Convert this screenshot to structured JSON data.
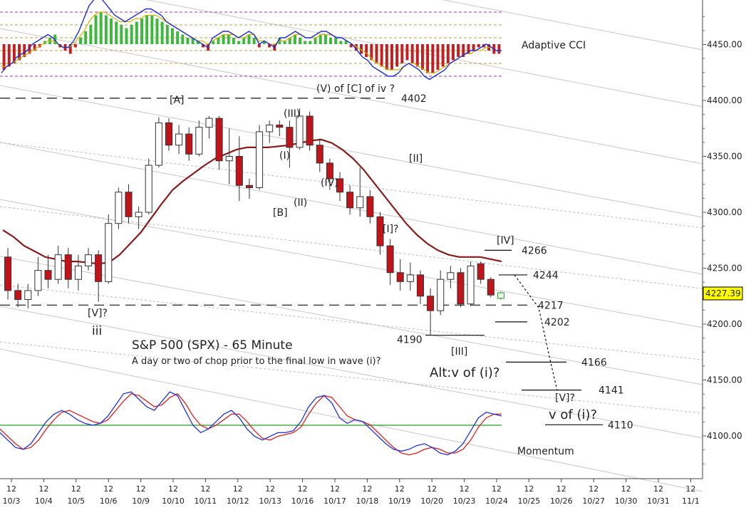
{
  "chart_data": {
    "type": "candlestick",
    "title": "S&P 500 (SPX) - 65 Minute",
    "subtitle": "A day or two of chop prior to the final low in wave (i)?",
    "current_price": "4227.39",
    "y_axis": {
      "min": 4070,
      "max": 4500,
      "ticks": [
        4100,
        4150,
        4200,
        4250,
        4300,
        4350,
        4400,
        4450
      ],
      "tick_labels": [
        "4100.00",
        "4150.00",
        "4200.00",
        "4250.00",
        "4300.00",
        "4350.00",
        "4400.00",
        "4450.00"
      ]
    },
    "x_axis": {
      "slots": 42,
      "ticks": [
        {
          "slot": 0,
          "top": "12",
          "bottom": "10/3"
        },
        {
          "slot": 2,
          "top": "12",
          "bottom": "10/4"
        },
        {
          "slot": 4,
          "top": "12",
          "bottom": "10/5"
        },
        {
          "slot": 6,
          "top": "12",
          "bottom": "10/6"
        },
        {
          "slot": 8,
          "top": "12",
          "bottom": "10/9"
        },
        {
          "slot": 10,
          "top": "12",
          "bottom": "10/10"
        },
        {
          "slot": 12,
          "top": "12",
          "bottom": "10/11"
        },
        {
          "slot": 14,
          "top": "12",
          "bottom": "10/12"
        },
        {
          "slot": 16,
          "top": "12",
          "bottom": "10/13"
        },
        {
          "slot": 18,
          "top": "12",
          "bottom": "10/16"
        },
        {
          "slot": 20,
          "top": "12",
          "bottom": "10/17"
        },
        {
          "slot": 22,
          "top": "12",
          "bottom": "10/18"
        },
        {
          "slot": 24,
          "top": "12",
          "bottom": "10/19"
        },
        {
          "slot": 26,
          "top": "12",
          "bottom": "10/20"
        },
        {
          "slot": 28,
          "top": "12",
          "bottom": "10/23"
        },
        {
          "slot": 30,
          "top": "12",
          "bottom": "10/24"
        },
        {
          "slot": 32,
          "top": "12",
          "bottom": "10/25"
        },
        {
          "slot": 34,
          "top": "12",
          "bottom": "10/26"
        },
        {
          "slot": 36,
          "top": "12",
          "bottom": "10/27"
        },
        {
          "slot": 38,
          "top": "12",
          "bottom": "10/30"
        },
        {
          "slot": 40,
          "top": "12",
          "bottom": "10/31"
        },
        {
          "slot": 42,
          "top": "12",
          "bottom": "11/1"
        }
      ]
    },
    "candles": [
      {
        "o": 4260,
        "h": 4268,
        "l": 4222,
        "c": 4230
      },
      {
        "o": 4230,
        "h": 4236,
        "l": 4215,
        "c": 4222
      },
      {
        "o": 4222,
        "h": 4236,
        "l": 4214,
        "c": 4230
      },
      {
        "o": 4230,
        "h": 4260,
        "l": 4225,
        "c": 4248
      },
      {
        "o": 4248,
        "h": 4262,
        "l": 4232,
        "c": 4240
      },
      {
        "o": 4240,
        "h": 4270,
        "l": 4236,
        "c": 4262
      },
      {
        "o": 4262,
        "h": 4268,
        "l": 4232,
        "c": 4240
      },
      {
        "o": 4240,
        "h": 4262,
        "l": 4230,
        "c": 4252
      },
      {
        "o": 4252,
        "h": 4268,
        "l": 4248,
        "c": 4262
      },
      {
        "o": 4262,
        "h": 4266,
        "l": 4220,
        "c": 4238
      },
      {
        "o": 4238,
        "h": 4298,
        "l": 4236,
        "c": 4290
      },
      {
        "o": 4290,
        "h": 4322,
        "l": 4285,
        "c": 4318
      },
      {
        "o": 4318,
        "h": 4325,
        "l": 4290,
        "c": 4296
      },
      {
        "o": 4296,
        "h": 4305,
        "l": 4285,
        "c": 4300
      },
      {
        "o": 4300,
        "h": 4348,
        "l": 4298,
        "c": 4342
      },
      {
        "o": 4342,
        "h": 4385,
        "l": 4340,
        "c": 4380
      },
      {
        "o": 4380,
        "h": 4384,
        "l": 4355,
        "c": 4360
      },
      {
        "o": 4360,
        "h": 4378,
        "l": 4352,
        "c": 4370
      },
      {
        "o": 4370,
        "h": 4376,
        "l": 4346,
        "c": 4352
      },
      {
        "o": 4352,
        "h": 4382,
        "l": 4350,
        "c": 4376
      },
      {
        "o": 4376,
        "h": 4386,
        "l": 4366,
        "c": 4384
      },
      {
        "o": 4384,
        "h": 4386,
        "l": 4338,
        "c": 4346
      },
      {
        "o": 4346,
        "h": 4375,
        "l": 4325,
        "c": 4350
      },
      {
        "o": 4350,
        "h": 4368,
        "l": 4310,
        "c": 4324
      },
      {
        "o": 4324,
        "h": 4330,
        "l": 4312,
        "c": 4322
      },
      {
        "o": 4322,
        "h": 4378,
        "l": 4320,
        "c": 4372
      },
      {
        "o": 4372,
        "h": 4382,
        "l": 4362,
        "c": 4378
      },
      {
        "o": 4378,
        "h": 4382,
        "l": 4368,
        "c": 4376
      },
      {
        "o": 4376,
        "h": 4382,
        "l": 4340,
        "c": 4358
      },
      {
        "o": 4358,
        "h": 4393,
        "l": 4356,
        "c": 4386
      },
      {
        "o": 4386,
        "h": 4390,
        "l": 4355,
        "c": 4360
      },
      {
        "o": 4360,
        "h": 4366,
        "l": 4336,
        "c": 4344
      },
      {
        "o": 4344,
        "h": 4348,
        "l": 4320,
        "c": 4330
      },
      {
        "o": 4330,
        "h": 4336,
        "l": 4310,
        "c": 4318
      },
      {
        "o": 4318,
        "h": 4324,
        "l": 4298,
        "c": 4304
      },
      {
        "o": 4304,
        "h": 4340,
        "l": 4296,
        "c": 4314
      },
      {
        "o": 4314,
        "h": 4320,
        "l": 4290,
        "c": 4296
      },
      {
        "o": 4296,
        "h": 4300,
        "l": 4262,
        "c": 4270
      },
      {
        "o": 4270,
        "h": 4276,
        "l": 4235,
        "c": 4246
      },
      {
        "o": 4246,
        "h": 4258,
        "l": 4230,
        "c": 4238
      },
      {
        "o": 4238,
        "h": 4255,
        "l": 4230,
        "c": 4244
      },
      {
        "o": 4244,
        "h": 4248,
        "l": 4218,
        "c": 4225
      },
      {
        "o": 4225,
        "h": 4232,
        "l": 4190,
        "c": 4212
      },
      {
        "o": 4212,
        "h": 4248,
        "l": 4208,
        "c": 4240
      },
      {
        "o": 4240,
        "h": 4252,
        "l": 4232,
        "c": 4246
      },
      {
        "o": 4246,
        "h": 4250,
        "l": 4215,
        "c": 4218
      },
      {
        "o": 4218,
        "h": 4256,
        "l": 4216,
        "c": 4252
      },
      {
        "o": 4254,
        "h": 4256,
        "l": 4236,
        "c": 4240
      },
      {
        "o": 4240,
        "h": 4242,
        "l": 4224,
        "c": 4226
      },
      {
        "o": 4223,
        "h": 4229,
        "l": 4222,
        "c": 4228
      }
    ],
    "moving_average": [
      4284,
      4278,
      4270,
      4265,
      4260,
      4258,
      4256,
      4256,
      4255,
      4254,
      4255,
      4262,
      4272,
      4282,
      4295,
      4308,
      4320,
      4328,
      4335,
      4342,
      4348,
      4352,
      4356,
      4358,
      4358,
      4358,
      4359,
      4360,
      4362,
      4364,
      4365,
      4362,
      4356,
      4348,
      4338,
      4326,
      4314,
      4302,
      4290,
      4280,
      4272,
      4266,
      4262,
      4260,
      4260,
      4260,
      4258,
      4256
    ],
    "horizontal_levels": [
      {
        "value": 4402,
        "label": "4402",
        "style": "dashed"
      },
      {
        "value": 4217,
        "label": "4217",
        "style": "dashed"
      },
      {
        "value": 4266,
        "label": "4266",
        "style": "solid"
      },
      {
        "value": 4244,
        "label": "4244",
        "style": "solid"
      },
      {
        "value": 4202,
        "label": "4202",
        "style": "solid"
      },
      {
        "value": 4190,
        "label": "4190",
        "style": "solid"
      },
      {
        "value": 4166,
        "label": "4166",
        "style": "solid"
      },
      {
        "value": 4141,
        "label": "4141",
        "style": "solid"
      },
      {
        "value": 4110,
        "label": "4110",
        "style": "solid"
      }
    ],
    "wave_labels": [
      "[A]",
      "(V) of [C] of iv ?",
      "(III)",
      "(I)",
      "[B]",
      "(II)",
      "(IV)",
      "[II]",
      "[I]?",
      "[IV]",
      "[III]",
      "[V]?",
      "iii",
      "Alt:v of (i)?",
      "[V]?",
      "v of (i)?"
    ],
    "indicators": {
      "adaptive_cci": {
        "name": "Adaptive CCI",
        "histogram": [
          -8,
          -7,
          -6,
          -5,
          -4,
          -3,
          -2,
          -1,
          1,
          2,
          3,
          -1,
          -2,
          -3,
          -1,
          2,
          4,
          6,
          9,
          10,
          9,
          8,
          7,
          6,
          5,
          6,
          7,
          8,
          9,
          9,
          8,
          7,
          6,
          5,
          4,
          3,
          2,
          2,
          1,
          -1,
          -2,
          1,
          2,
          3,
          3,
          2,
          1,
          2,
          3,
          2,
          -1,
          1,
          -1,
          -2,
          2,
          1,
          2,
          3,
          2,
          1,
          1,
          2,
          3,
          3,
          2,
          2,
          1,
          1,
          -1,
          -2,
          -3,
          -4,
          -5,
          -6,
          -7,
          -8,
          -8,
          -7,
          -6,
          -5,
          -6,
          -7,
          -8,
          -9,
          -9,
          -8,
          -7,
          -6,
          -5,
          -4,
          -4,
          -3,
          -2,
          -1,
          -1,
          -2,
          -3,
          -3
        ],
        "line_blue": [
          -9,
          -7,
          -6,
          -4,
          -3,
          -2,
          0,
          1,
          2,
          3,
          2,
          0,
          -1,
          -1,
          1,
          4,
          8,
          12,
          14,
          15,
          13,
          11,
          9,
          8,
          7,
          8,
          9,
          10,
          11,
          11,
          10,
          9,
          7,
          6,
          5,
          4,
          3,
          2,
          1,
          0,
          -1,
          2,
          3,
          4,
          4,
          3,
          2,
          3,
          4,
          3,
          0,
          1,
          0,
          -1,
          2,
          2,
          3,
          4,
          3,
          2,
          2,
          3,
          4,
          4,
          3,
          2,
          2,
          1,
          0,
          -2,
          -4,
          -5,
          -7,
          -8,
          -9,
          -10,
          -10,
          -9,
          -7,
          -6,
          -7,
          -8,
          -10,
          -11,
          -10,
          -9,
          -8,
          -6,
          -5,
          -4,
          -3,
          -2,
          -2,
          -1,
          0,
          -1,
          -2,
          -2
        ],
        "line_yellow": [
          -7,
          -7,
          -6,
          -5,
          -4,
          -3,
          -2,
          -1,
          0,
          1,
          1,
          0,
          -1,
          -1,
          0,
          2,
          4,
          7,
          9,
          10,
          10,
          9,
          8,
          7,
          7,
          7,
          8,
          8,
          9,
          9,
          9,
          8,
          7,
          6,
          5,
          4,
          3,
          2,
          1,
          1,
          0,
          1,
          2,
          3,
          3,
          3,
          2,
          2,
          3,
          3,
          1,
          1,
          0,
          0,
          1,
          1,
          2,
          3,
          3,
          2,
          2,
          2,
          3,
          3,
          3,
          2,
          2,
          1,
          0,
          -1,
          -2,
          -3,
          -5,
          -6,
          -7,
          -8,
          -8,
          -8,
          -7,
          -6,
          -6,
          -7,
          -8,
          -9,
          -9,
          -8,
          -7,
          -6,
          -5,
          -4,
          -3,
          -3,
          -2,
          -2,
          -1,
          -1,
          -2,
          -2
        ],
        "levels": [
          10,
          6,
          2,
          -2,
          -6,
          -10
        ]
      },
      "momentum": {
        "name": "Momentum",
        "zero": 0,
        "line_blue": [
          -4,
          -8,
          -12,
          -13,
          -10,
          -4,
          2,
          6,
          8,
          6,
          3,
          1,
          0,
          1,
          5,
          11,
          17,
          18,
          14,
          10,
          8,
          13,
          18,
          16,
          8,
          0,
          -4,
          -2,
          2,
          6,
          8,
          4,
          -2,
          -6,
          -8,
          -6,
          -4,
          -4,
          -3,
          2,
          10,
          15,
          16,
          12,
          4,
          1,
          3,
          2,
          -2,
          -6,
          -10,
          -13,
          -14,
          -13,
          -11,
          -10,
          -12,
          -15,
          -16,
          -14,
          -10,
          -3,
          4,
          7,
          6,
          5
        ],
        "line_red": [
          -2,
          -6,
          -10,
          -13,
          -12,
          -8,
          -2,
          3,
          7,
          8,
          6,
          4,
          2,
          1,
          3,
          8,
          13,
          17,
          16,
          13,
          10,
          11,
          15,
          17,
          12,
          5,
          0,
          -2,
          0,
          3,
          6,
          6,
          2,
          -3,
          -7,
          -8,
          -6,
          -5,
          -4,
          -1,
          6,
          12,
          16,
          15,
          10,
          5,
          3,
          2,
          0,
          -4,
          -8,
          -12,
          -15,
          -16,
          -15,
          -13,
          -12,
          -13,
          -15,
          -15,
          -13,
          -8,
          -1,
          4,
          6,
          6
        ],
        "range": [
          -22,
          22
        ]
      }
    }
  }
}
